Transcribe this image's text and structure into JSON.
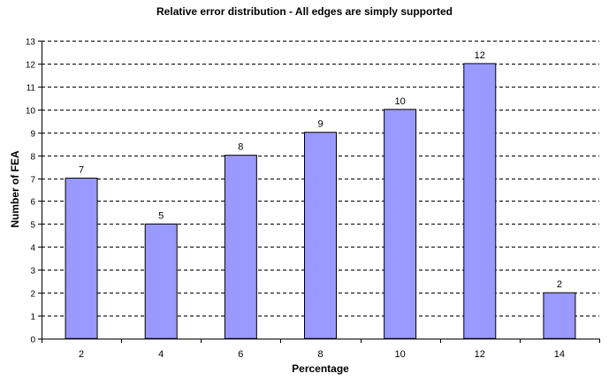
{
  "chart_data": {
    "type": "bar",
    "title": "Relative error distribution - All edges are simply supported",
    "xlabel": "Percentage",
    "ylabel": "Number of FEA",
    "categories": [
      "2",
      "4",
      "6",
      "8",
      "10",
      "12",
      "14"
    ],
    "values": [
      7,
      5,
      8,
      9,
      10,
      12,
      2
    ],
    "ylim": [
      0,
      13
    ],
    "y_ticks": [
      0,
      1,
      2,
      3,
      4,
      5,
      6,
      7,
      8,
      9,
      10,
      11,
      12,
      13
    ],
    "grid": "horizontal dashed",
    "data_labels": true,
    "legend": "none",
    "colors": {
      "bar_fill": "#9999ff",
      "bar_stroke": "#000000",
      "grid": "#000000",
      "background": "#ffffff"
    }
  }
}
